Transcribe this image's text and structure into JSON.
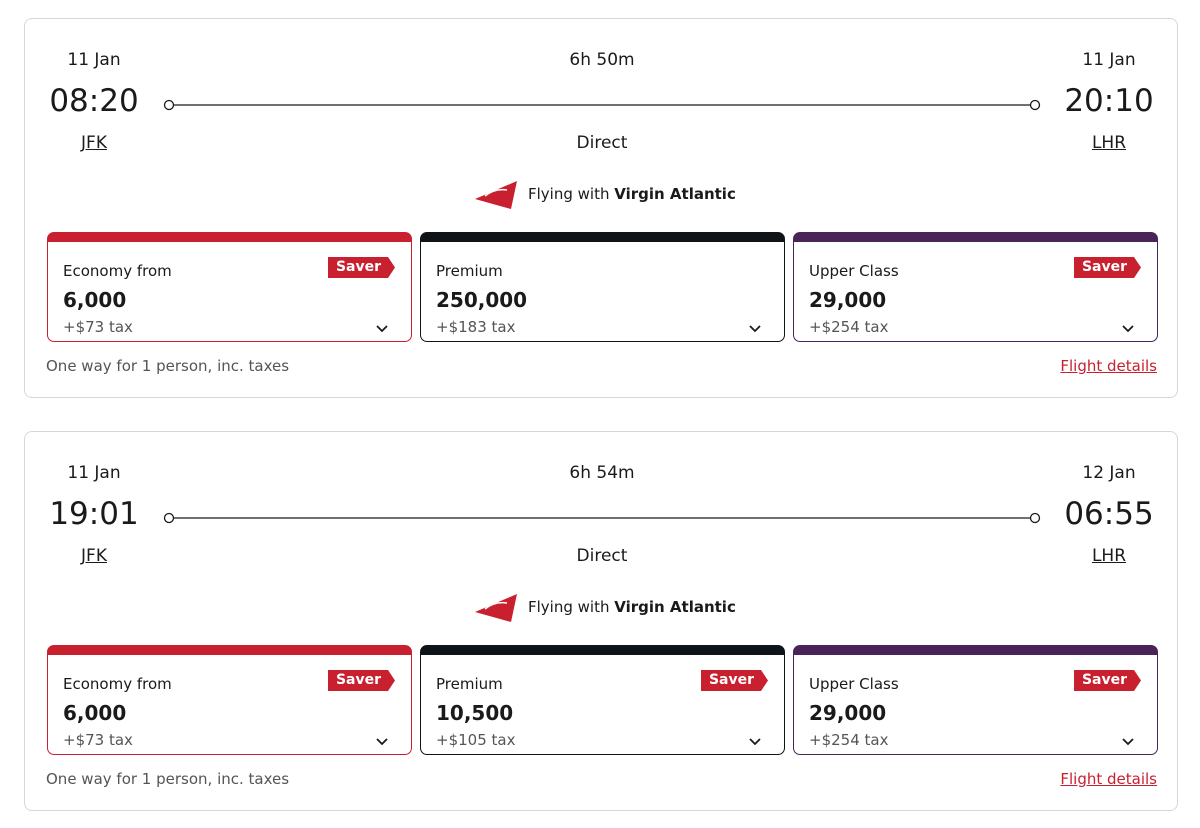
{
  "flights": [
    {
      "depart_date": "11 Jan",
      "depart_time": "08:20",
      "depart_code": "JFK",
      "duration": "6h 50m",
      "stops": "Direct",
      "arrive_date": "11 Jan",
      "arrive_time": "20:10",
      "arrive_code": "LHR",
      "airline_prefix": "Flying with",
      "airline": "Virgin Atlantic",
      "fares": [
        {
          "cabin": "Economy from",
          "badge": "Saver",
          "price": "6,000",
          "tax": "+$73 tax",
          "color": "#c8202f"
        },
        {
          "cabin": "Premium",
          "price": "250,000",
          "tax": "+$183 tax",
          "color": "#0f1419"
        },
        {
          "cabin": "Upper Class",
          "badge": "Saver",
          "price": "29,000",
          "tax": "+$254 tax",
          "color": "#4a2359"
        }
      ],
      "note": "One way for 1 person, inc. taxes",
      "details_link": "Flight details"
    },
    {
      "depart_date": "11 Jan",
      "depart_time": "19:01",
      "depart_code": "JFK",
      "duration": "6h 54m",
      "stops": "Direct",
      "arrive_date": "12 Jan",
      "arrive_time": "06:55",
      "arrive_code": "LHR",
      "airline_prefix": "Flying with",
      "airline": "Virgin Atlantic",
      "fares": [
        {
          "cabin": "Economy from",
          "badge": "Saver",
          "price": "6,000",
          "tax": "+$73 tax",
          "color": "#c8202f"
        },
        {
          "cabin": "Premium",
          "badge": "Saver",
          "price": "10,500",
          "tax": "+$105 tax",
          "color": "#0f1419"
        },
        {
          "cabin": "Upper Class",
          "badge": "Saver",
          "price": "29,000",
          "tax": "+$254 tax",
          "color": "#4a2359"
        }
      ],
      "note": "One way for 1 person, inc. taxes",
      "details_link": "Flight details"
    }
  ]
}
